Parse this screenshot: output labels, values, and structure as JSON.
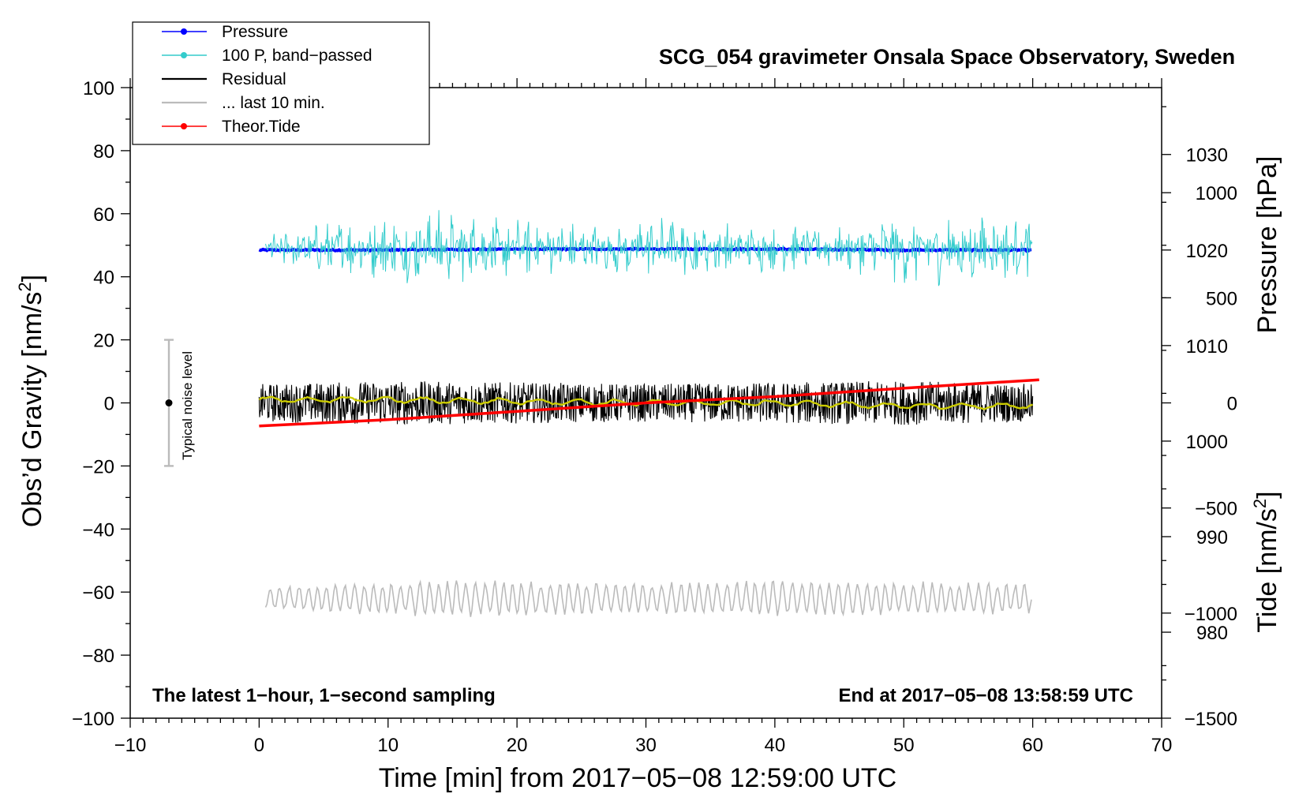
{
  "chart_data": {
    "type": "line",
    "title": "SCG_054 gravimeter Onsala Space Observatory, Sweden",
    "xlabel": "Time [min] from 2017−05−08 12:59:00 UTC",
    "ylabel_left": "Obs’d Gravity [nm/s²]",
    "ylabel_left_parts": [
      "Obs’d Gravity [nm/s",
      "2",
      "]"
    ],
    "ylabel_pressure": "Pressure [hPa]",
    "ylabel_tide": "Tide [nm/s²]",
    "ylabel_tide_parts": [
      "Tide [nm/s",
      "2",
      "]"
    ],
    "xlim": [
      -10,
      70
    ],
    "ylim_left": [
      -100,
      100
    ],
    "ylim_pressure": [
      971,
      1037
    ],
    "ylim_tide": [
      -1500,
      1500
    ],
    "x_ticks": [
      -10,
      0,
      10,
      20,
      30,
      40,
      50,
      60,
      70
    ],
    "x_tick_labels": [
      "−10",
      "0",
      "10",
      "20",
      "30",
      "40",
      "50",
      "60",
      "70"
    ],
    "y_left_ticks": [
      -100,
      -80,
      -60,
      -40,
      -20,
      0,
      20,
      40,
      60,
      80,
      100
    ],
    "y_left_tick_labels": [
      "−100",
      "−80",
      "−60",
      "−40",
      "−20",
      "0",
      "20",
      "40",
      "60",
      "80",
      "100"
    ],
    "pressure_ticks": [
      980,
      990,
      1000,
      1010,
      1020,
      1030
    ],
    "pressure_tick_labels": [
      "980",
      "990",
      "1000",
      "1010",
      "1020",
      "1030"
    ],
    "tide_ticks": [
      -1500,
      -1000,
      -500,
      0,
      500,
      1000
    ],
    "tide_tick_labels": [
      "−1500",
      "−1000",
      "−500",
      "0",
      "500",
      "1000"
    ],
    "series": [
      {
        "name": "Pressure",
        "axis": "pressure",
        "color": "#0000ff",
        "x": [
          0,
          10,
          20,
          30,
          40,
          50,
          60
        ],
        "values": [
          1020.0,
          1020.0,
          1020.1,
          1020.1,
          1020.1,
          1020.0,
          1020.0
        ]
      },
      {
        "name": "100 P, band−passed",
        "axis": "left",
        "color": "#33cccc",
        "x_range": [
          0.5,
          60
        ],
        "center": 49,
        "envelope": [
          [
            0,
            4
          ],
          [
            4,
            9
          ],
          [
            10,
            11
          ],
          [
            14,
            13
          ],
          [
            20,
            10
          ],
          [
            27,
            8
          ],
          [
            30,
            11
          ],
          [
            38,
            8
          ],
          [
            45,
            7
          ],
          [
            50,
            12
          ],
          [
            55,
            12
          ],
          [
            60,
            9
          ]
        ],
        "note": "noisy ~1-second band-passed pressure signal"
      },
      {
        "name": "Residual",
        "axis": "left",
        "color": "#000000",
        "x_range": [
          0,
          60
        ],
        "center": 0,
        "envelope": [
          [
            0,
            6
          ],
          [
            10,
            7
          ],
          [
            30,
            6
          ],
          [
            50,
            7
          ],
          [
            60,
            6
          ]
        ],
        "note": "noisy residual, 1-second sampling"
      },
      {
        "name": "... last 10 min.",
        "axis": "left",
        "color": "#bbbbbb",
        "x_range": [
          0.5,
          60
        ],
        "center": -62,
        "envelope": [
          [
            0,
            4
          ],
          [
            15,
            6
          ],
          [
            30,
            5
          ],
          [
            40,
            6
          ],
          [
            60,
            5
          ]
        ],
        "note": "last 10 minutes of residual stretched over the hour"
      },
      {
        "name": "Theor.Tide",
        "axis": "tide",
        "color": "#ff0000",
        "x": [
          0,
          10,
          20,
          30,
          40,
          50,
          60.5
        ],
        "values": [
          -110,
          -80,
          -40,
          0,
          30,
          70,
          110
        ]
      }
    ],
    "smoothed_residual": {
      "color": "#cccc00",
      "x": [
        0,
        10,
        20,
        30,
        40,
        50,
        60
      ],
      "values": [
        1,
        1,
        0.5,
        0,
        0,
        -1,
        -1
      ]
    },
    "noise_bar": {
      "label": "Typical noise level",
      "x": -7,
      "center": 0,
      "range": [
        -20,
        20
      ],
      "color": "#bbbbbb"
    },
    "legend": {
      "position": "top-left",
      "entries": [
        {
          "label": "Pressure",
          "color": "#0000ff",
          "marker": true
        },
        {
          "label": "100 P, band−passed",
          "color": "#33cccc",
          "marker": true
        },
        {
          "label": "Residual",
          "color": "#000000",
          "marker": false
        },
        {
          "label": "... last 10 min.",
          "color": "#bbbbbb",
          "marker": false
        },
        {
          "label": "Theor.Tide",
          "color": "#ff0000",
          "marker": true
        }
      ]
    },
    "annotations": {
      "left": "The latest 1−hour, 1−second sampling",
      "right": "End at 2017−05−08 13:58:59 UTC"
    }
  }
}
